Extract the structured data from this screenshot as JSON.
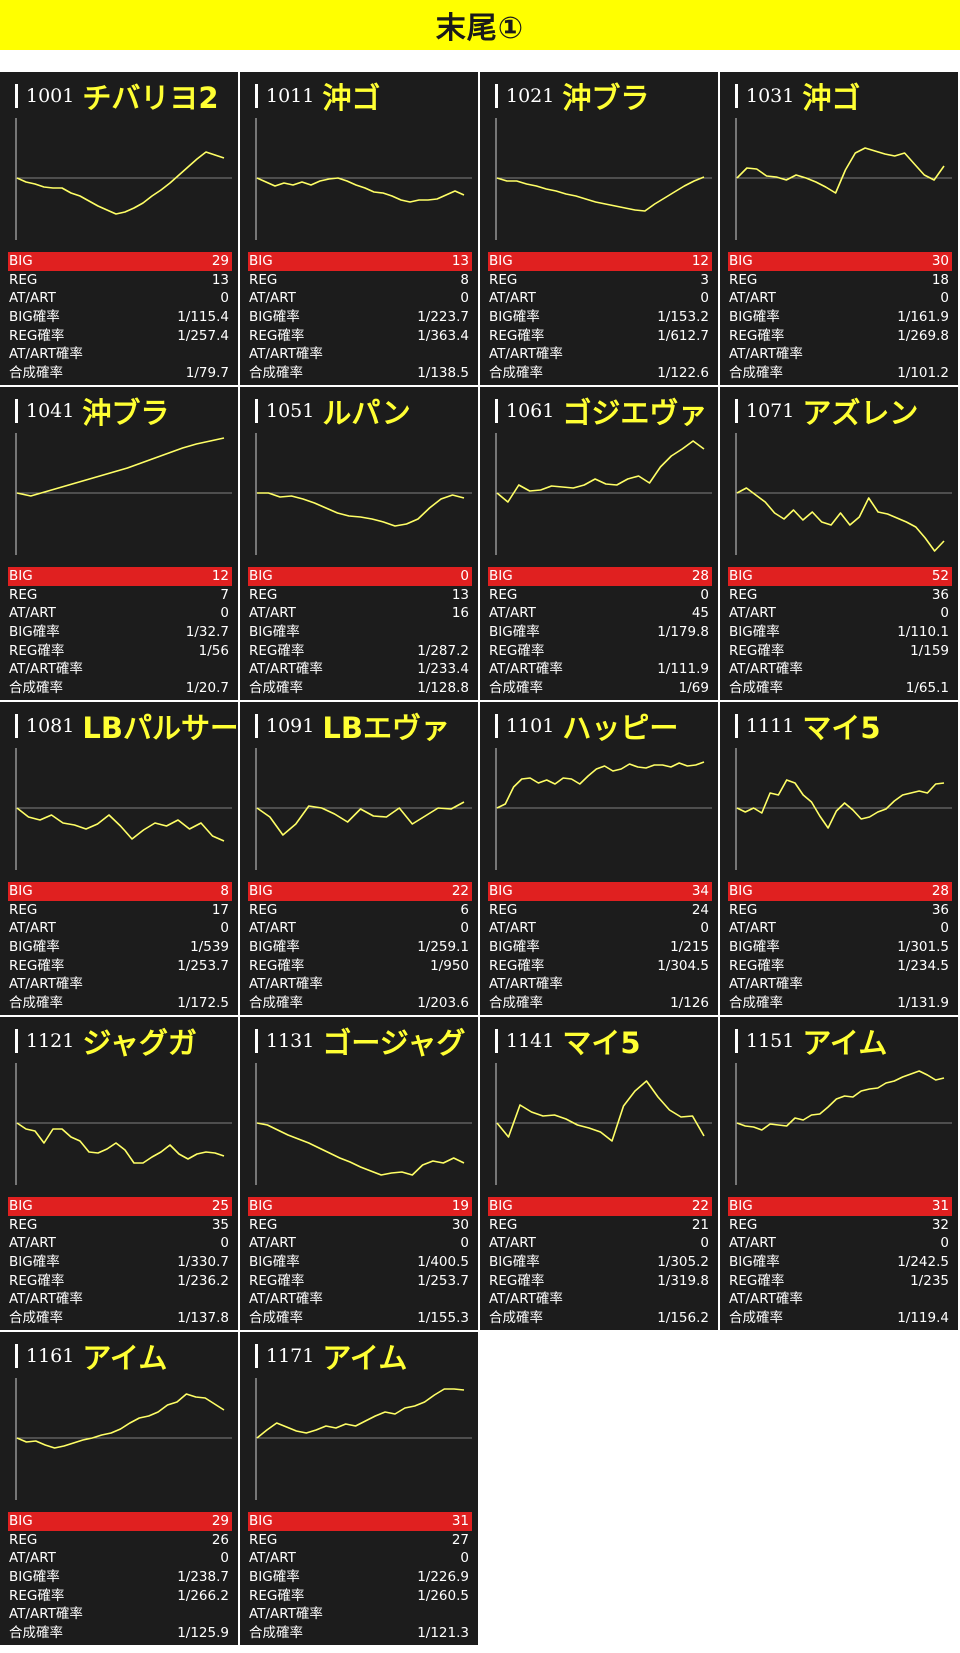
{
  "page": {
    "title": "末尾①"
  },
  "labels": {
    "big": "BIG",
    "reg": "REG",
    "at": "AT/ART",
    "big_rate": "BIG確率",
    "reg_rate": "REG確率",
    "at_rate": "AT/ART確率",
    "total_rate": "合成確率"
  },
  "colors": {
    "banner": "#ffff00",
    "card": "#1c1c1c",
    "big_row": "#e02020",
    "line": "#ffff66",
    "model": "#ffff33"
  },
  "machines": [
    {
      "num": "1001",
      "model": "チバリヨ2",
      "big": "29",
      "reg": "13",
      "at": "0",
      "big_rate": "1/115.4",
      "reg_rate": "1/257.4",
      "at_rate": "",
      "total_rate": "1/79.7",
      "trend": [
        0,
        -4,
        -6,
        -9,
        -10,
        -10,
        -15,
        -18,
        -23,
        -28,
        -32,
        -36,
        -34,
        -30,
        -25,
        -18,
        -12,
        -5,
        3,
        11,
        19,
        26,
        23,
        20
      ]
    },
    {
      "num": "1011",
      "model": "沖ゴ",
      "big": "13",
      "reg": "8",
      "at": "0",
      "big_rate": "1/223.7",
      "reg_rate": "1/363.4",
      "at_rate": "",
      "total_rate": "1/138.5",
      "trend": [
        0,
        -4,
        -8,
        -5,
        -7,
        -4,
        -7,
        -3,
        -1,
        0,
        -3,
        -7,
        -10,
        -14,
        -15,
        -18,
        -22,
        -24,
        -22,
        -22,
        -21,
        -17,
        -13,
        -17
      ]
    },
    {
      "num": "1021",
      "model": "沖ブラ",
      "big": "12",
      "reg": "3",
      "at": "0",
      "big_rate": "1/153.2",
      "reg_rate": "1/612.7",
      "at_rate": "",
      "total_rate": "1/122.6",
      "trend": [
        0,
        -3,
        -3,
        -6,
        -8,
        -11,
        -13,
        -16,
        -18,
        -21,
        -24,
        -26,
        -28,
        -30,
        -32,
        -33,
        -26,
        -20,
        -14,
        -8,
        -3,
        1
      ]
    },
    {
      "num": "1031",
      "model": "沖ゴ",
      "big": "30",
      "reg": "18",
      "at": "0",
      "big_rate": "1/161.9",
      "reg_rate": "1/269.8",
      "at_rate": "",
      "total_rate": "1/101.2",
      "trend": [
        0,
        10,
        9,
        2,
        1,
        -2,
        3,
        0,
        -4,
        -9,
        -15,
        8,
        25,
        30,
        27,
        24,
        22,
        25,
        14,
        3,
        -2,
        12
      ]
    },
    {
      "num": "1041",
      "model": "沖ブラ",
      "big": "12",
      "reg": "7",
      "at": "0",
      "big_rate": "1/32.7",
      "reg_rate": "1/56",
      "at_rate": "",
      "total_rate": "1/20.7",
      "trend": [
        0,
        -3,
        1,
        5,
        9,
        13,
        17,
        21,
        25,
        30,
        35,
        40,
        45,
        49,
        52,
        55
      ]
    },
    {
      "num": "1051",
      "model": "ルパン",
      "big": "0",
      "reg": "13",
      "at": "16",
      "big_rate": "",
      "reg_rate": "1/287.2",
      "at_rate": "1/233.4",
      "total_rate": "1/128.8",
      "trend": [
        0,
        0,
        -4,
        -3,
        -6,
        -10,
        -15,
        -20,
        -23,
        -24,
        -26,
        -29,
        -33,
        -31,
        -26,
        -15,
        -6,
        -2,
        -5
      ]
    },
    {
      "num": "1061",
      "model": "ゴジエヴァ",
      "big": "28",
      "reg": "0",
      "at": "45",
      "big_rate": "1/179.8",
      "reg_rate": "",
      "at_rate": "1/111.9",
      "total_rate": "1/69",
      "trend": [
        0,
        -9,
        8,
        2,
        3,
        7,
        6,
        5,
        8,
        14,
        9,
        8,
        14,
        17,
        10,
        26,
        37,
        44,
        52,
        44
      ]
    },
    {
      "num": "1071",
      "model": "アズレン",
      "big": "52",
      "reg": "36",
      "at": "0",
      "big_rate": "1/110.1",
      "reg_rate": "1/159",
      "at_rate": "",
      "total_rate": "1/65.1",
      "trend": [
        0,
        5,
        -2,
        -9,
        -20,
        -26,
        -17,
        -27,
        -19,
        -29,
        -32,
        -20,
        -32,
        -24,
        -5,
        -19,
        -21,
        -25,
        -29,
        -34,
        -45,
        -58,
        -48
      ]
    },
    {
      "num": "1081",
      "model": "LBパルサー",
      "big": "8",
      "reg": "17",
      "at": "0",
      "big_rate": "1/539",
      "reg_rate": "1/253.7",
      "at_rate": "",
      "total_rate": "1/172.5",
      "trend": [
        0,
        -9,
        -12,
        -7,
        -15,
        -17,
        -21,
        -16,
        -7,
        -18,
        -31,
        -22,
        -15,
        -18,
        -12,
        -21,
        -15,
        -28,
        -33
      ]
    },
    {
      "num": "1091",
      "model": "LBエヴァ",
      "big": "22",
      "reg": "6",
      "at": "0",
      "big_rate": "1/259.1",
      "reg_rate": "1/950",
      "at_rate": "",
      "total_rate": "1/203.6",
      "trend": [
        0,
        -9,
        -27,
        -16,
        2,
        0,
        -6,
        -14,
        -1,
        -8,
        -9,
        0,
        -16,
        -8,
        0,
        -1,
        6
      ]
    },
    {
      "num": "1101",
      "model": "ハッピー",
      "big": "34",
      "reg": "24",
      "at": "0",
      "big_rate": "1/215",
      "reg_rate": "1/304.5",
      "at_rate": "",
      "total_rate": "1/126",
      "trend": [
        0,
        4,
        21,
        29,
        30,
        25,
        28,
        24,
        30,
        29,
        24,
        32,
        39,
        42,
        37,
        39,
        44,
        41,
        40,
        43,
        43,
        41,
        45,
        42,
        43,
        46
      ]
    },
    {
      "num": "1111",
      "model": "マイ5",
      "big": "28",
      "reg": "36",
      "at": "0",
      "big_rate": "1/301.5",
      "reg_rate": "1/234.5",
      "at_rate": "",
      "total_rate": "1/131.9",
      "trend": [
        0,
        -4,
        0,
        -5,
        15,
        13,
        28,
        25,
        13,
        6,
        -8,
        -20,
        -3,
        5,
        -2,
        -11,
        -9,
        -4,
        -1,
        7,
        13,
        15,
        17,
        15,
        24,
        25
      ]
    },
    {
      "num": "1121",
      "model": "ジャグガ",
      "big": "25",
      "reg": "35",
      "at": "0",
      "big_rate": "1/330.7",
      "reg_rate": "1/236.2",
      "at_rate": "",
      "total_rate": "1/137.8",
      "trend": [
        0,
        -6,
        -8,
        -20,
        -6,
        -6,
        -14,
        -18,
        -29,
        -30,
        -26,
        -20,
        -27,
        -40,
        -40,
        -34,
        -29,
        -22,
        -31,
        -36,
        -31,
        -29,
        -30,
        -33
      ]
    },
    {
      "num": "1131",
      "model": "ゴージャグ",
      "big": "19",
      "reg": "30",
      "at": "0",
      "big_rate": "1/400.5",
      "reg_rate": "1/253.7",
      "at_rate": "",
      "total_rate": "1/155.3",
      "trend": [
        0,
        -2,
        -7,
        -12,
        -16,
        -20,
        -25,
        -30,
        -35,
        -39,
        -44,
        -48,
        -52,
        -50,
        -49,
        -52,
        -42,
        -38,
        -40,
        -35,
        -40
      ]
    },
    {
      "num": "1141",
      "model": "マイ5",
      "big": "22",
      "reg": "21",
      "at": "0",
      "big_rate": "1/305.2",
      "reg_rate": "1/319.8",
      "at_rate": "",
      "total_rate": "1/156.2",
      "trend": [
        0,
        -14,
        18,
        11,
        7,
        8,
        4,
        -2,
        -5,
        -9,
        -18,
        17,
        32,
        42,
        26,
        13,
        6,
        7,
        -13
      ]
    },
    {
      "num": "1151",
      "model": "アイム",
      "big": "31",
      "reg": "32",
      "at": "0",
      "big_rate": "1/242.5",
      "reg_rate": "1/235",
      "at_rate": "",
      "total_rate": "1/119.4",
      "trend": [
        0,
        -3,
        -4,
        -7,
        -1,
        -2,
        -3,
        5,
        3,
        8,
        9,
        16,
        24,
        27,
        26,
        32,
        34,
        35,
        40,
        42,
        46,
        49,
        52,
        48,
        43,
        45
      ]
    },
    {
      "num": "1161",
      "model": "アイム",
      "big": "29",
      "reg": "26",
      "at": "0",
      "big_rate": "1/238.7",
      "reg_rate": "1/266.2",
      "at_rate": "",
      "total_rate": "1/125.9",
      "trend": [
        0,
        -4,
        -3,
        -7,
        -10,
        -8,
        -5,
        -2,
        0,
        3,
        5,
        9,
        15,
        20,
        22,
        26,
        33,
        36,
        44,
        41,
        40,
        34,
        28
      ]
    },
    {
      "num": "1171",
      "model": "アイム",
      "big": "31",
      "reg": "27",
      "at": "0",
      "big_rate": "1/226.9",
      "reg_rate": "1/260.5",
      "at_rate": "",
      "total_rate": "1/121.3",
      "trend": [
        0,
        8,
        15,
        11,
        7,
        5,
        8,
        12,
        10,
        14,
        12,
        17,
        22,
        26,
        24,
        30,
        32,
        36,
        43,
        49,
        49,
        48
      ]
    }
  ]
}
